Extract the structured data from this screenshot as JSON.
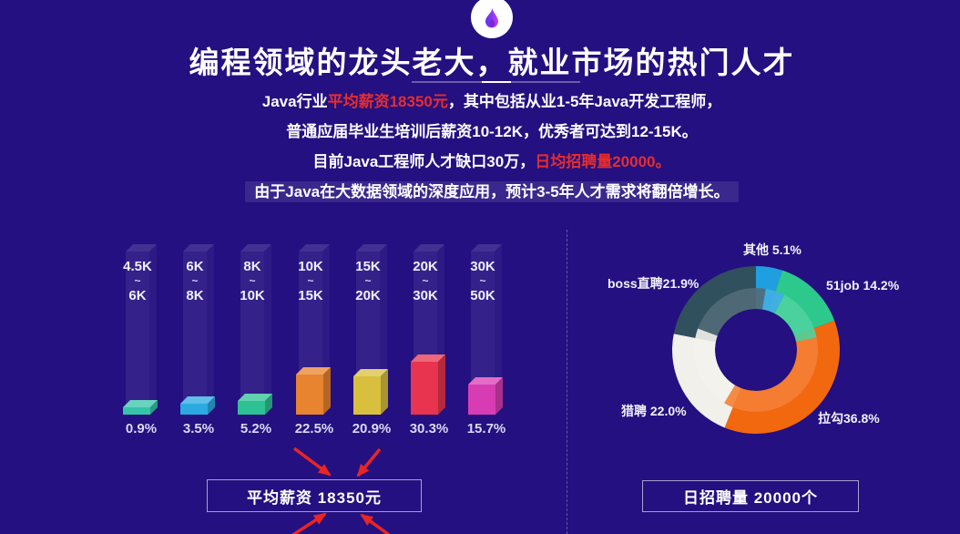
{
  "colors": {
    "background": "#241080",
    "highlight_red": "#e82c2c",
    "arrow_red": "#e92525",
    "badge_circle": "#ffffff"
  },
  "header": {
    "badge_icon": "flame-icon",
    "title": "编程领域的龙头老大，就业市场的热门人才",
    "intro_lines": [
      {
        "pre": "Java行业",
        "highlight": "平均薪资18350元",
        "post": "，其中包括从业1-5年Java开发工程师，"
      },
      {
        "text": "普通应届毕业生培训后薪资10-12K，优秀者可达到12-15K。"
      },
      {
        "pre": "目前Java工程师人才缺口30万，",
        "highlight": "日均招聘量20000。",
        "post": ""
      },
      {
        "text": "由于Java在大数据领域的深度应用，预计3-5年人才需求将翻倍增长。",
        "banded": true
      }
    ]
  },
  "chart_data": [
    {
      "type": "bar",
      "style": "3d-pillar",
      "categories": [
        "4.5K~6K",
        "6K~8K",
        "8K~10K",
        "10K~15K",
        "15K~20K",
        "20K~30K",
        "30K~50K"
      ],
      "ranges": [
        [
          "4.5K",
          "6K"
        ],
        [
          "6K",
          "8K"
        ],
        [
          "8K",
          "10K"
        ],
        [
          "10K",
          "15K"
        ],
        [
          "15K",
          "20K"
        ],
        [
          "20K",
          "30K"
        ],
        [
          "30K",
          "50K"
        ]
      ],
      "values": [
        0.9,
        3.5,
        5.2,
        22.5,
        20.9,
        30.3,
        15.7
      ],
      "value_labels": [
        "0.9%",
        "3.5%",
        "5.2%",
        "22.5%",
        "20.9%",
        "30.3%",
        "15.7%"
      ],
      "colors": [
        "#35c4a8",
        "#2ba9e0",
        "#2dc193",
        "#e8832f",
        "#d8bf3e",
        "#e8344e",
        "#d83cb4"
      ],
      "unit": "%",
      "ylim": [
        0,
        35
      ],
      "grid": false
    },
    {
      "type": "pie",
      "donut": true,
      "names": [
        "其他",
        "51job",
        "拉勾",
        "猎聘",
        "boss直聘"
      ],
      "keys": [
        "other",
        "51job",
        "lagou",
        "liepin",
        "boss"
      ],
      "labels": [
        "其他 5.1%",
        "51job 14.2%",
        "拉勾36.8%",
        "猎聘 22.0%",
        "boss直聘21.9%"
      ],
      "values": [
        5.1,
        14.2,
        36.8,
        22.0,
        21.9
      ],
      "colors": [
        "#1f9fe0",
        "#2dc98c",
        "#f2680f",
        "#f1f0ea",
        "#31505e"
      ],
      "start_angle_deg": 0,
      "direction": "clockwise",
      "inner_radius_ratio": 0.49,
      "legend_position": "around"
    }
  ],
  "footer": {
    "left_box_label": "平均薪资 18350元",
    "right_box_label": "日招聘量 20000个"
  }
}
